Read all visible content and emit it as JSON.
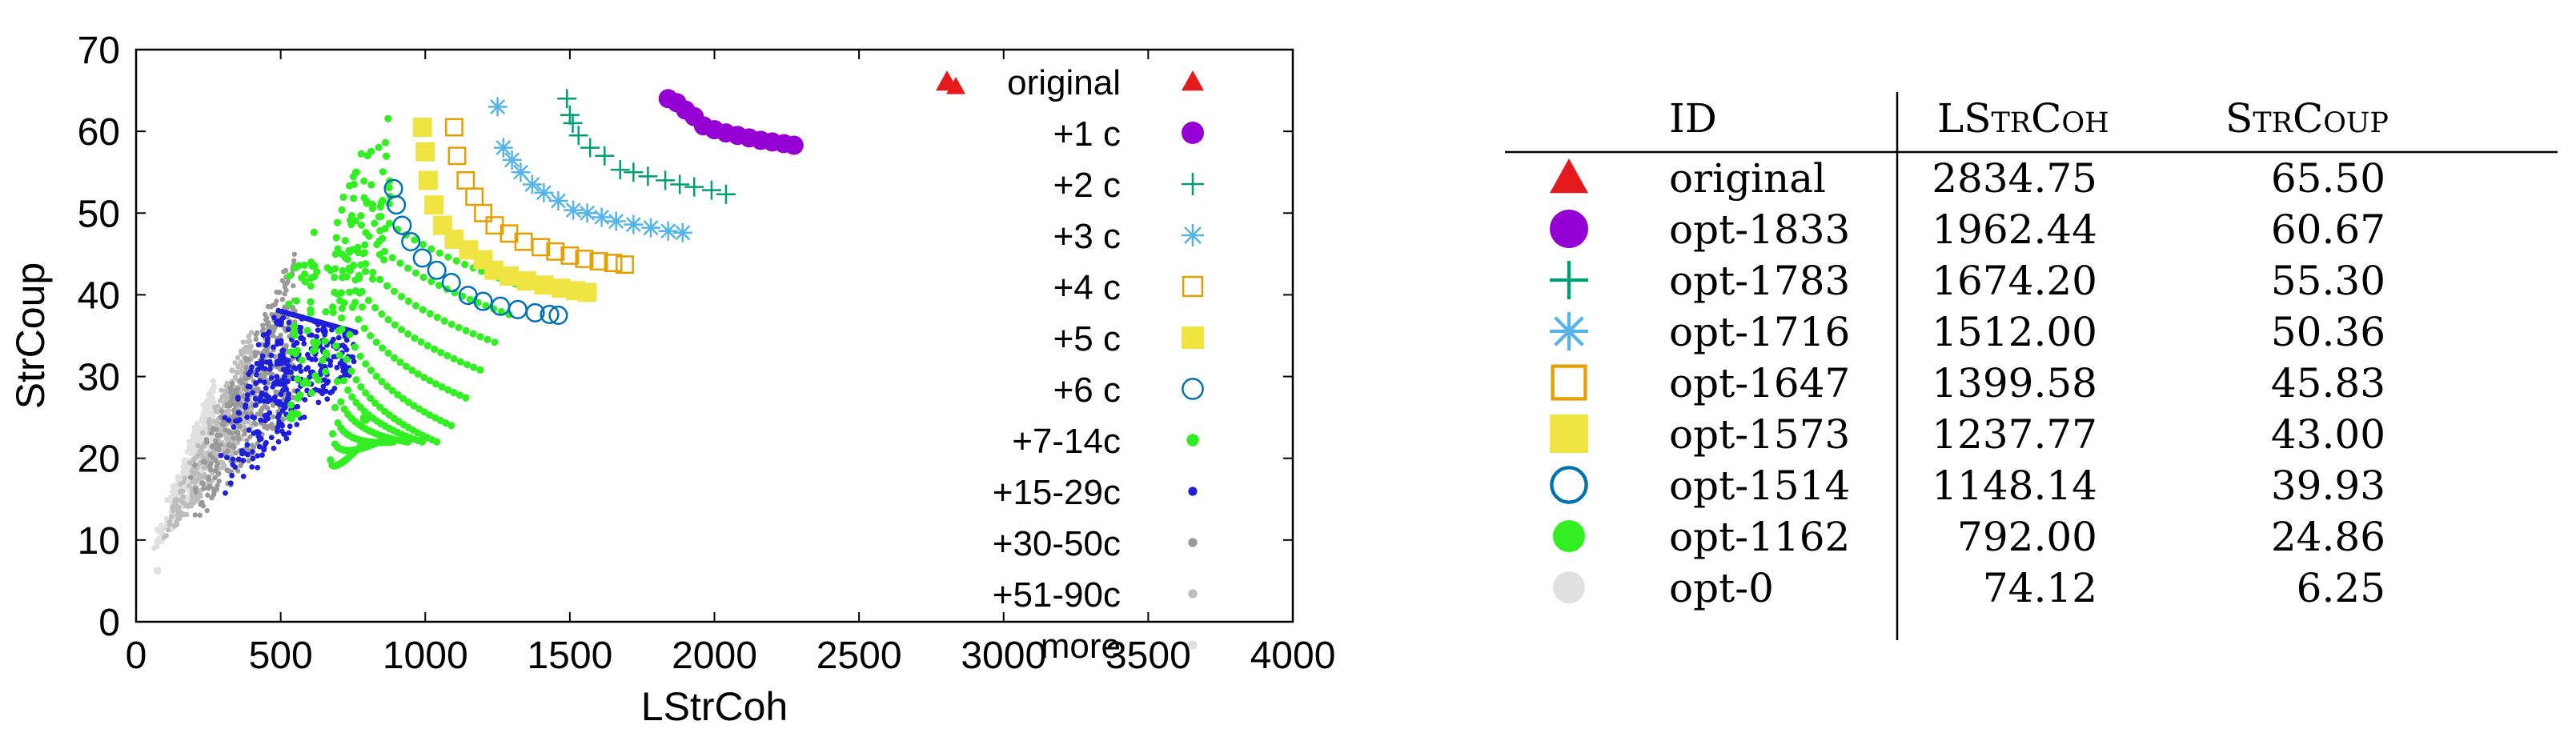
{
  "colors": {
    "original": "#e41a1c",
    "c1": "#9400d3",
    "c2": "#009e73",
    "c3": "#56b4e9",
    "c4": "#e69f00",
    "c5": "#f0e442",
    "c6": "#0072b2",
    "c7": "#33ee22",
    "c15": "#1f1fd8",
    "c30": "#999999",
    "c51": "#bdbdbd",
    "more": "#e0e0e0"
  },
  "chart_data": {
    "type": "scatter",
    "xlabel": "LStrCoh",
    "ylabel": "StrCoup",
    "xlim": [
      0,
      4000
    ],
    "ylim": [
      0,
      70
    ],
    "xticks": [
      "0",
      "500",
      "1000",
      "1500",
      "2000",
      "2500",
      "3000",
      "3500",
      "4000"
    ],
    "yticks": [
      "0",
      "10",
      "20",
      "30",
      "40",
      "50",
      "60",
      "70"
    ],
    "grid": false,
    "legend_position": "right",
    "series": [
      {
        "name": "original",
        "marker": "triangle",
        "color_key": "original",
        "points": [
          [
            2834.75,
            65.5
          ]
        ]
      },
      {
        "name": "+1 c",
        "marker": "circle-filled",
        "color_key": "c1",
        "points": [
          [
            1840,
            64
          ],
          [
            1870,
            63.5
          ],
          [
            1900,
            62.6
          ],
          [
            1930,
            61.8
          ],
          [
            1962,
            60.67
          ],
          [
            2000,
            60.2
          ],
          [
            2040,
            59.8
          ],
          [
            2080,
            59.5
          ],
          [
            2120,
            59.2
          ],
          [
            2160,
            58.9
          ],
          [
            2200,
            58.7
          ],
          [
            2240,
            58.5
          ],
          [
            2275,
            58.3
          ]
        ]
      },
      {
        "name": "+2 c",
        "marker": "plus",
        "color_key": "c2",
        "points": [
          [
            1490,
            64
          ],
          [
            1500,
            62
          ],
          [
            1510,
            61
          ],
          [
            1530,
            59.5
          ],
          [
            1570,
            58
          ],
          [
            1620,
            57
          ],
          [
            1674,
            55.3
          ],
          [
            1720,
            55
          ],
          [
            1770,
            54.5
          ],
          [
            1830,
            54
          ],
          [
            1880,
            53.5
          ],
          [
            1930,
            53.2
          ],
          [
            1990,
            52.8
          ],
          [
            2040,
            52.3
          ]
        ]
      },
      {
        "name": "+3 c",
        "marker": "asterisk",
        "color_key": "c3",
        "points": [
          [
            1250,
            63
          ],
          [
            1270,
            58
          ],
          [
            1300,
            56.5
          ],
          [
            1330,
            55
          ],
          [
            1370,
            53.5
          ],
          [
            1410,
            52.5
          ],
          [
            1460,
            51.5
          ],
          [
            1512,
            50.36
          ],
          [
            1560,
            50
          ],
          [
            1610,
            49.5
          ],
          [
            1660,
            49
          ],
          [
            1720,
            48.6
          ],
          [
            1780,
            48.2
          ],
          [
            1840,
            47.8
          ],
          [
            1890,
            47.6
          ]
        ]
      },
      {
        "name": "+4 c",
        "marker": "square-open",
        "color_key": "c4",
        "points": [
          [
            1100,
            60.5
          ],
          [
            1110,
            57
          ],
          [
            1140,
            54
          ],
          [
            1170,
            52
          ],
          [
            1200,
            50
          ],
          [
            1240,
            48.5
          ],
          [
            1290,
            47.5
          ],
          [
            1340,
            46.5
          ],
          [
            1399.58,
            45.83
          ],
          [
            1450,
            45.3
          ],
          [
            1500,
            44.8
          ],
          [
            1550,
            44.4
          ],
          [
            1600,
            44.1
          ],
          [
            1650,
            43.9
          ],
          [
            1690,
            43.7
          ]
        ]
      },
      {
        "name": "+5 c",
        "marker": "square-filled",
        "color_key": "c5",
        "points": [
          [
            990,
            60.5
          ],
          [
            1000,
            57.5
          ],
          [
            1010,
            54
          ],
          [
            1030,
            51
          ],
          [
            1060,
            48.5
          ],
          [
            1100,
            46.8
          ],
          [
            1150,
            45.5
          ],
          [
            1200,
            44.3
          ],
          [
            1237.77,
            43
          ],
          [
            1290,
            42.3
          ],
          [
            1350,
            41.7
          ],
          [
            1410,
            41.2
          ],
          [
            1470,
            40.8
          ],
          [
            1520,
            40.5
          ],
          [
            1560,
            40.3
          ]
        ]
      },
      {
        "name": "+6 c",
        "marker": "circle-open",
        "color_key": "c6",
        "points": [
          [
            890,
            53
          ],
          [
            900,
            51
          ],
          [
            920,
            48.5
          ],
          [
            950,
            46.5
          ],
          [
            990,
            44.5
          ],
          [
            1040,
            43
          ],
          [
            1090,
            41.5
          ],
          [
            1148.14,
            39.93
          ],
          [
            1200,
            39.2
          ],
          [
            1260,
            38.6
          ],
          [
            1320,
            38.2
          ],
          [
            1380,
            37.8
          ],
          [
            1430,
            37.6
          ],
          [
            1460,
            37.5
          ]
        ]
      },
      {
        "name": "+7-14c",
        "marker": "dot",
        "color_key": "c7",
        "points": [
          [
            792,
            24.86
          ]
        ]
      },
      {
        "name": "+15-29c",
        "marker": "dot-small",
        "color_key": "c15",
        "points": []
      },
      {
        "name": "+30-50c",
        "marker": "dot-small",
        "color_key": "c30",
        "points": []
      },
      {
        "name": "+51-90c",
        "marker": "dot-small",
        "color_key": "c51",
        "points": []
      },
      {
        "name": "more",
        "marker": "dot-small",
        "color_key": "more",
        "points": [
          [
            74.12,
            6.25
          ]
        ]
      }
    ],
    "table": {
      "headers": [
        "ID",
        "LStrCoh",
        "StrCoup"
      ],
      "rows": [
        {
          "marker": "triangle",
          "color_key": "original",
          "id": "original",
          "lstrcoh": "2834.75",
          "strcoup": "65.50"
        },
        {
          "marker": "circle-filled",
          "color_key": "c1",
          "id": "opt-1833",
          "lstrcoh": "1962.44",
          "strcoup": "60.67"
        },
        {
          "marker": "plus",
          "color_key": "c2",
          "id": "opt-1783",
          "lstrcoh": "1674.20",
          "strcoup": "55.30"
        },
        {
          "marker": "asterisk",
          "color_key": "c3",
          "id": "opt-1716",
          "lstrcoh": "1512.00",
          "strcoup": "50.36"
        },
        {
          "marker": "square-open",
          "color_key": "c4",
          "id": "opt-1647",
          "lstrcoh": "1399.58",
          "strcoup": "45.83"
        },
        {
          "marker": "square-filled",
          "color_key": "c5",
          "id": "opt-1573",
          "lstrcoh": "1237.77",
          "strcoup": "43.00"
        },
        {
          "marker": "circle-open",
          "color_key": "c6",
          "id": "opt-1514",
          "lstrcoh": "1148.14",
          "strcoup": "39.93"
        },
        {
          "marker": "circle-filled",
          "color_key": "c7",
          "id": "opt-1162",
          "lstrcoh": "792.00",
          "strcoup": "24.86"
        },
        {
          "marker": "circle-filled",
          "color_key": "more",
          "id": "opt-0",
          "lstrcoh": "74.12",
          "strcoup": "6.25"
        }
      ]
    }
  }
}
